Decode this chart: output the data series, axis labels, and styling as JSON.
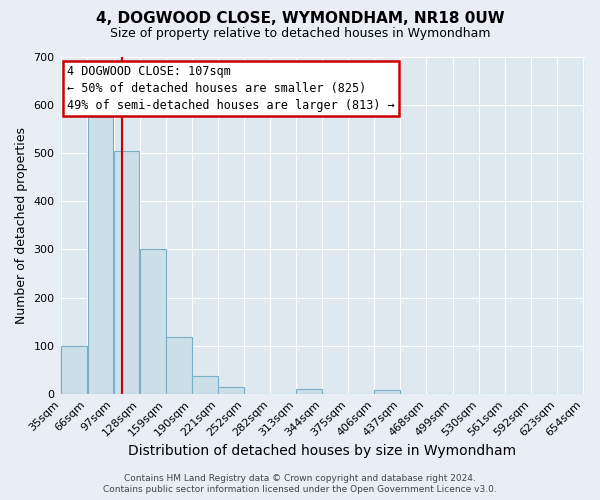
{
  "title": "4, DOGWOOD CLOSE, WYMONDHAM, NR18 0UW",
  "subtitle": "Size of property relative to detached houses in Wymondham",
  "xlabel": "Distribution of detached houses by size in Wymondham",
  "ylabel": "Number of detached properties",
  "bin_edges": [
    35,
    66,
    97,
    128,
    159,
    190,
    221,
    252,
    282,
    313,
    344,
    375,
    406,
    437,
    468,
    499,
    530,
    561,
    592,
    623,
    654
  ],
  "bar_heights": [
    100,
    575,
    505,
    300,
    118,
    38,
    15,
    0,
    0,
    10,
    0,
    0,
    8,
    0,
    0,
    0,
    0,
    0,
    0,
    0
  ],
  "bar_color": "#ccdee8",
  "bar_edgecolor": "#7aafc8",
  "vline_x": 107,
  "vline_color": "#cc0000",
  "ylim_max": 700,
  "yticks": [
    0,
    100,
    200,
    300,
    400,
    500,
    600,
    700
  ],
  "annotation_line1": "4 DOGWOOD CLOSE: 107sqm",
  "annotation_line2": "← 50% of detached houses are smaller (825)",
  "annotation_line3": "49% of semi-detached houses are larger (813) →",
  "footer_line1": "Contains HM Land Registry data © Crown copyright and database right 2024.",
  "footer_line2": "Contains public sector information licensed under the Open Government Licence v3.0.",
  "fig_bg_color": "#e8eef4",
  "plot_bg_color": "#dde8f0",
  "grid_color": "#ffffff",
  "title_fontsize": 11,
  "subtitle_fontsize": 9,
  "xlabel_fontsize": 10,
  "ylabel_fontsize": 9,
  "tick_fontsize": 8,
  "annotation_fontsize": 8.5,
  "footer_fontsize": 6.5
}
